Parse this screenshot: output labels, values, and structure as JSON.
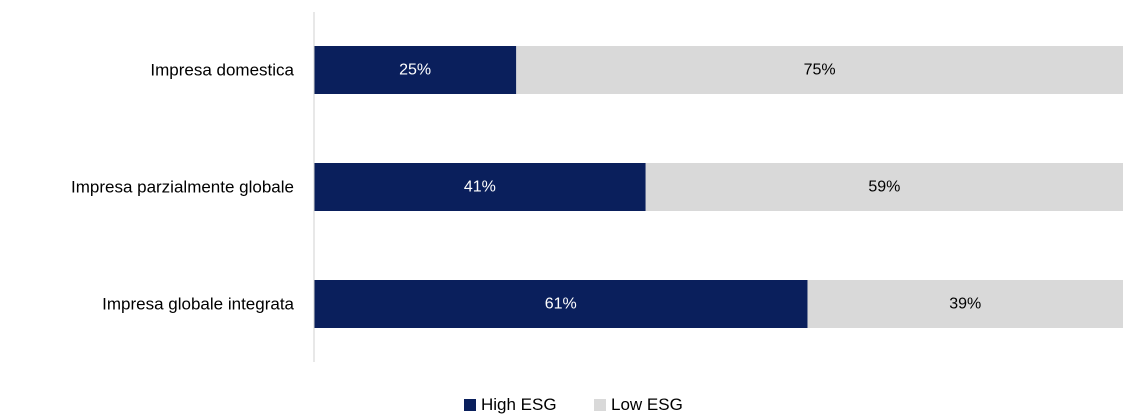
{
  "chart_data": {
    "type": "bar",
    "orientation": "horizontal",
    "stacked": true,
    "categories": [
      "Impresa domestica",
      "Impresa parzialmente globale",
      "Impresa globale integrata"
    ],
    "series": [
      {
        "name": "High ESG",
        "values": [
          25,
          41,
          61
        ],
        "labels": [
          "25%",
          "41%",
          "61%"
        ],
        "color": "#0a1f5c",
        "label_color": "#ffffff"
      },
      {
        "name": "Low ESG",
        "values": [
          75,
          59,
          39
        ],
        "labels": [
          "75%",
          "59%",
          "39%"
        ],
        "color": "#d9d9d9",
        "label_color": "#000000"
      }
    ],
    "xlim": [
      0,
      100
    ],
    "grid": false,
    "legend": "bottom-center"
  }
}
